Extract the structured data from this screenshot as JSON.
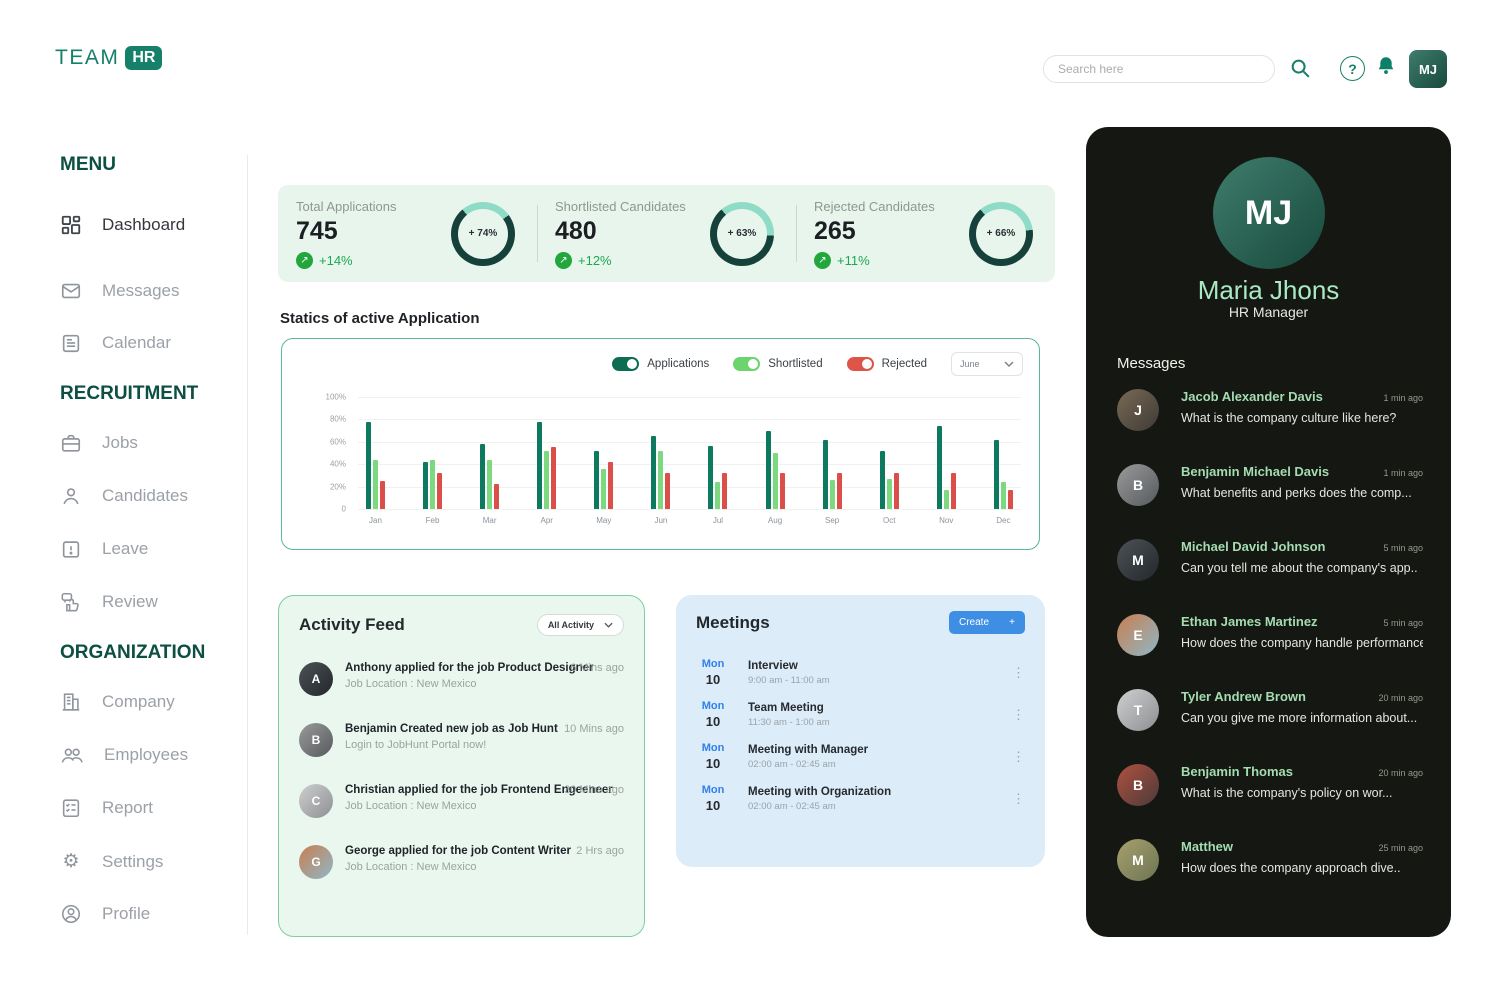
{
  "colors": {
    "brand_teal": "#17806a",
    "bar_applications": "#0d7a60",
    "bar_shortlisted": "#7cd97f",
    "bar_rejected": "#db4f4a",
    "ring_dark": "#15413a",
    "ring_light": "#8fdcc6",
    "delta_green": "#23a73d",
    "meeting_blue": "#2f80ed",
    "create_blue": "#3e8fe3",
    "stats_bg": "#e8f5ed",
    "dark_panel_bg": "#151713"
  },
  "brand": {
    "name": "TEAM",
    "badge": "HR"
  },
  "topbar": {
    "search_placeholder": "Search here"
  },
  "sidebar": {
    "sections": [
      {
        "title": "MENU",
        "items": [
          {
            "label": "Dashboard"
          },
          {
            "label": "Messages"
          },
          {
            "label": "Calendar"
          }
        ]
      },
      {
        "title": "RECRUITMENT",
        "items": [
          {
            "label": "Jobs"
          },
          {
            "label": "Candidates"
          },
          {
            "label": "Leave"
          },
          {
            "label": "Review"
          }
        ]
      },
      {
        "title": "ORGANIZATION",
        "items": [
          {
            "label": "Company"
          },
          {
            "label": "Employees"
          },
          {
            "label": "Report"
          },
          {
            "label": "Settings"
          },
          {
            "label": "Profile"
          }
        ]
      }
    ]
  },
  "stats": [
    {
      "label": "Total Applications",
      "value": "745",
      "delta": "+14%",
      "arrow": "↗",
      "ring_label": "+ 74%",
      "ring_percent": 74
    },
    {
      "label": "Shortlisted Candidates",
      "value": "480",
      "delta": "+12%",
      "arrow": "↗",
      "ring_label": "+ 63%",
      "ring_percent": 63
    },
    {
      "label": "Rejected Candidates",
      "value": "265",
      "delta": "+11%",
      "arrow": "↗",
      "ring_label": "+ 66%",
      "ring_percent": 66
    }
  ],
  "chart_section": {
    "title": "Statics of active Application",
    "month_filter": "June"
  },
  "chart_data": {
    "type": "bar",
    "title": "Statics of active Application",
    "categories": [
      "Jan",
      "Feb",
      "Mar",
      "Apr",
      "May",
      "Jun",
      "Jul",
      "Aug",
      "Sep",
      "Oct",
      "Nov",
      "Dec"
    ],
    "series": [
      {
        "name": "Applications",
        "color": "#0d7a60",
        "values": [
          78,
          42,
          58,
          78,
          52,
          65,
          56,
          70,
          62,
          52,
          74,
          62
        ]
      },
      {
        "name": "Shortlisted",
        "color": "#7cd97f",
        "values": [
          44,
          44,
          44,
          52,
          36,
          52,
          24,
          50,
          26,
          27,
          17,
          24
        ]
      },
      {
        "name": "Rejected",
        "color": "#db4f4a",
        "values": [
          25,
          32,
          22,
          55,
          42,
          32,
          32,
          32,
          32,
          32,
          32,
          17
        ]
      }
    ],
    "ylim": [
      0,
      100
    ],
    "yticks": [
      "100%",
      "80%",
      "60%",
      "40%",
      "20%",
      "0"
    ],
    "grid": true,
    "legend_position": "top-right",
    "legend": [
      {
        "label": "Applications",
        "color": "#0e6b54"
      },
      {
        "label": "Shortlisted",
        "color": "#6cd46c"
      },
      {
        "label": "Rejected",
        "color": "#de5448"
      }
    ]
  },
  "activity": {
    "title": "Activity Feed",
    "filter_label": "All Activity",
    "items": [
      {
        "initial": "A",
        "title": "Anthony applied for the job Product Designer",
        "subtitle": "Job Location : New Mexico",
        "time": "6 Mins ago"
      },
      {
        "initial": "B",
        "title": "Benjamin Created new job as Job Hunt",
        "subtitle": "Login to JobHunt Portal now!",
        "time": "10 Mins ago"
      },
      {
        "initial": "C",
        "title": "Christian applied for the job Frontend Engeeneer",
        "subtitle": "Job Location : New Mexico",
        "time": "30 Mins ago"
      },
      {
        "initial": "G",
        "title": "George applied for the job Content Writer",
        "subtitle": "Job Location : New Mexico",
        "time": "2 Hrs ago"
      }
    ]
  },
  "meetings": {
    "title": "Meetings",
    "create_label": "Create",
    "create_plus": "+",
    "items": [
      {
        "day": "Mon",
        "date": "10",
        "title": "Interview",
        "time": "9:00 am - 11:00 am"
      },
      {
        "day": "Mon",
        "date": "10",
        "title": "Team Meeting",
        "time": "11:30 am - 1:00 am"
      },
      {
        "day": "Mon",
        "date": "10",
        "title": "Meeting with Manager",
        "time": "02:00 am - 02:45 am"
      },
      {
        "day": "Mon",
        "date": "10",
        "title": "Meeting with Organization",
        "time": "02:00 am - 02:45 am"
      }
    ]
  },
  "profile": {
    "name": "Maria Jhons",
    "role": "HR Manager",
    "initials": "MJ",
    "messages_title": "Messages",
    "messages": [
      {
        "initial": "J",
        "name": "Jacob Alexander Davis",
        "time": "1 min ago",
        "preview": "What is the company culture like here?"
      },
      {
        "initial": "B",
        "name": "Benjamin Michael Davis",
        "time": "1 min ago",
        "preview": "What benefits and perks does the comp..."
      },
      {
        "initial": "M",
        "name": "Michael David Johnson",
        "time": "5 min ago",
        "preview": "Can you tell me about the company's app.."
      },
      {
        "initial": "E",
        "name": "Ethan James Martinez",
        "time": "5 min ago",
        "preview": "How does the company handle performance.."
      },
      {
        "initial": "T",
        "name": "Tyler Andrew Brown",
        "time": "20 min ago",
        "preview": "Can you give me more information about..."
      },
      {
        "initial": "B",
        "name": "Benjamin Thomas",
        "time": "20 min ago",
        "preview": "What is the company's policy on wor..."
      },
      {
        "initial": "M",
        "name": "Matthew",
        "time": "25 min ago",
        "preview": "How does the company approach dive.."
      }
    ]
  }
}
